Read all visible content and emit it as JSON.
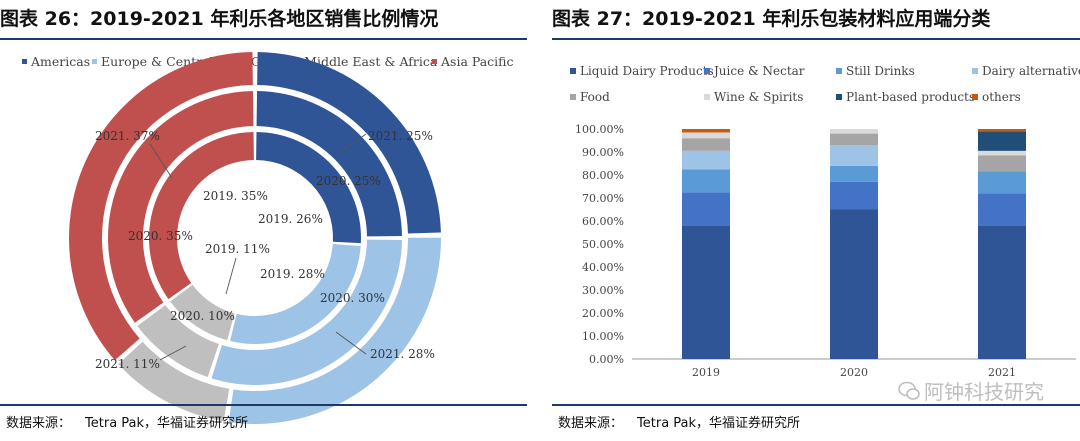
{
  "left": {
    "title": "图表 26：2019-2021 年利乐各地区销售比例情况",
    "source_label": "数据来源：",
    "source_value": "Tetra Pak，华福证券研究所"
  },
  "right": {
    "title": "图表 27：2019-2021 年利乐包装材料应用端分类",
    "source_label": "数据来源：",
    "source_value": "Tetra Pak，华福证券研究所"
  },
  "watermark": "阿钟科技研究",
  "colors": {
    "Americas": "#2f5597",
    "Europe & Central Asia": "#9dc3e6",
    "Greater Middle East & Africa": "#bfbfbf",
    "Asia Pacific": "#c0504d",
    "Liquid Dairy Products": "#2f5597",
    "Juice & Nectar": "#4472c4",
    "Still Drinks": "#5b9bd5",
    "Dairy alternatives": "#9dc3e6",
    "Food": "#a5a5a5",
    "Wine & Spirits": "#d9d9d9",
    "Plant-based products": "#1f4e79",
    "others": "#c55a11"
  },
  "chart_data": [
    {
      "type": "pie",
      "subtype": "doughnut",
      "title": "2019-2021 年利乐各地区销售比例情况",
      "legend": [
        "Americas",
        "Europe & Central Asia",
        "Greater Middle East & Africa",
        "Asia Pacific"
      ],
      "legend_position": "top",
      "rings": [
        {
          "year": "2019",
          "position": "inner",
          "values": [
            26,
            28,
            11,
            35
          ],
          "labels": [
            "2019. 26%",
            "2019. 28%",
            "2019. 11%",
            "2019. 35%"
          ]
        },
        {
          "year": "2020",
          "position": "middle",
          "values": [
            25,
            30,
            10,
            35
          ],
          "labels": [
            "2020. 25%",
            "2020. 30%",
            "2020. 10%",
            "2020. 35%"
          ]
        },
        {
          "year": "2021",
          "position": "outer",
          "values": [
            25,
            28,
            11,
            37
          ],
          "labels": [
            "2021. 25%",
            "2021. 28%",
            "2021. 11%",
            "2021. 37%"
          ]
        }
      ]
    },
    {
      "type": "bar",
      "subtype": "stacked-100",
      "title": "2019-2021 年利乐包装材料应用端分类",
      "categories": [
        "2019",
        "2020",
        "2021"
      ],
      "ylim": [
        0,
        100
      ],
      "yticks": [
        "0.00%",
        "10.00%",
        "20.00%",
        "30.00%",
        "40.00%",
        "50.00%",
        "60.00%",
        "70.00%",
        "80.00%",
        "90.00%",
        "100.00%"
      ],
      "legend_position": "top",
      "series": [
        {
          "name": "Liquid Dairy Products",
          "values": [
            58,
            65,
            58
          ]
        },
        {
          "name": "Juice & Nectar",
          "values": [
            14.5,
            12,
            14
          ]
        },
        {
          "name": "Still Drinks",
          "values": [
            10,
            7,
            9.5
          ]
        },
        {
          "name": "Dairy alternatives",
          "values": [
            8,
            9,
            0
          ]
        },
        {
          "name": "Food",
          "values": [
            5.5,
            5,
            7
          ]
        },
        {
          "name": "Wine & Spirits",
          "values": [
            2.5,
            2,
            2
          ]
        },
        {
          "name": "Plant-based products",
          "values": [
            0,
            0,
            8.5
          ]
        },
        {
          "name": "others",
          "values": [
            1.5,
            0,
            1
          ]
        }
      ]
    }
  ]
}
